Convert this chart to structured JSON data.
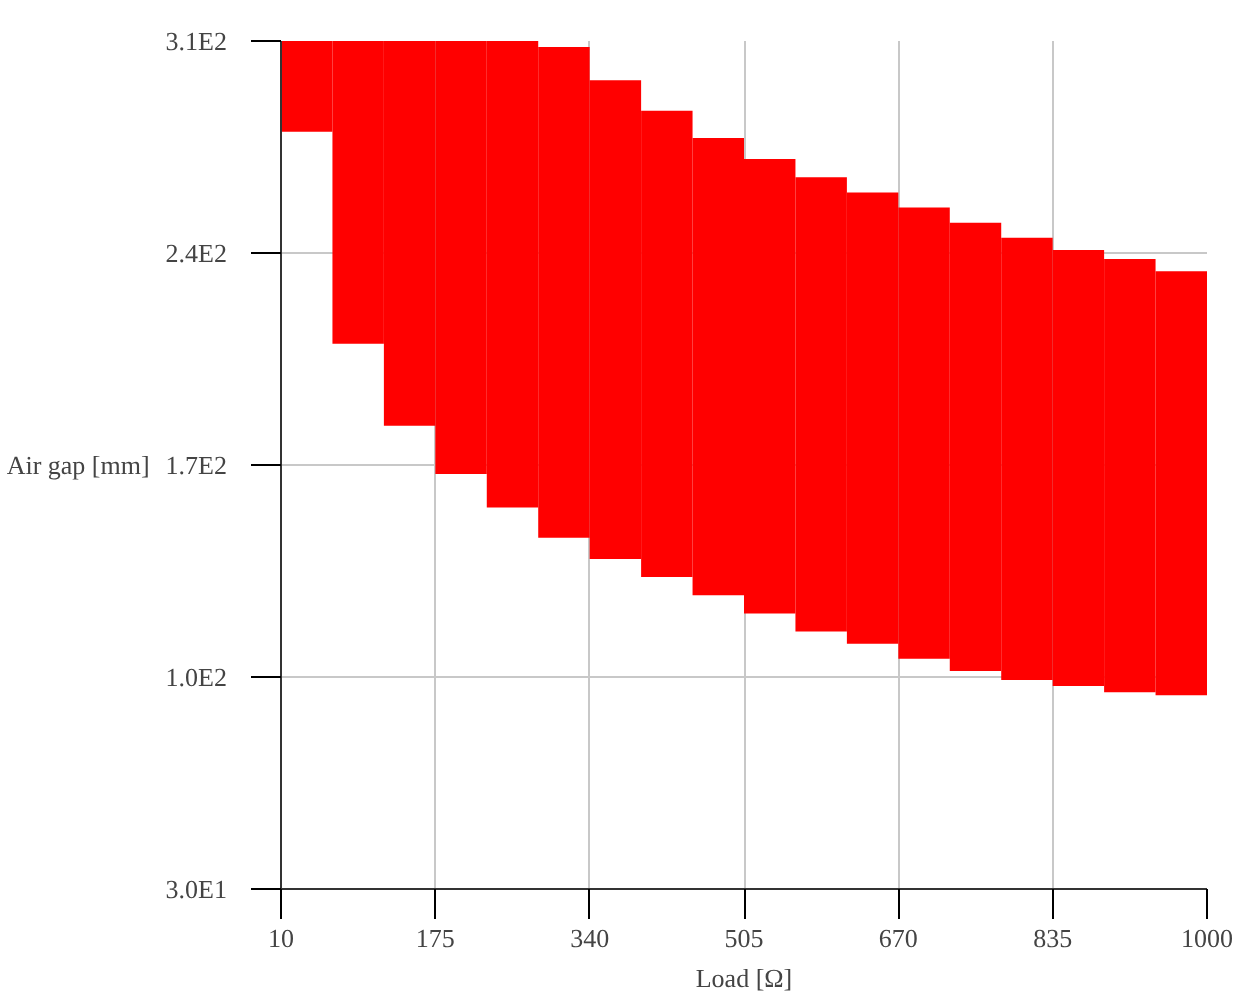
{
  "chart_data": {
    "type": "bar",
    "xlabel": "Load [Ω]",
    "ylabel": "Air gap [mm]",
    "xlim": [
      10,
      1000
    ],
    "ylim": [
      30,
      310
    ],
    "xticks": [
      10,
      175,
      340,
      505,
      670,
      835,
      1000
    ],
    "yticks": [
      {
        "value": 30,
        "label": "3.0E1"
      },
      {
        "value": 100,
        "label": "1.0E2"
      },
      {
        "value": 170,
        "label": "1.7E2"
      },
      {
        "value": 240,
        "label": "2.4E2"
      },
      {
        "value": 310,
        "label": "3.1E2"
      }
    ],
    "grid": true,
    "x": [
      37.5,
      92.5,
      147.5,
      202.5,
      257.5,
      312.5,
      367.5,
      422.5,
      477.5,
      532.5,
      587.5,
      642.5,
      697.5,
      752.5,
      807.5,
      862.5,
      917.5,
      972.5
    ],
    "series": [
      {
        "color": "#ff0000",
        "base": [
          280,
          210,
          183,
          167,
          156,
          146,
          139,
          133,
          127,
          121,
          115,
          111,
          106,
          102,
          99,
          97,
          95,
          94
        ],
        "values": [
          30,
          100,
          127,
          143,
          154,
          162,
          158,
          154,
          151,
          150,
          150,
          149,
          149,
          148,
          146,
          144,
          143,
          140
        ]
      }
    ]
  }
}
